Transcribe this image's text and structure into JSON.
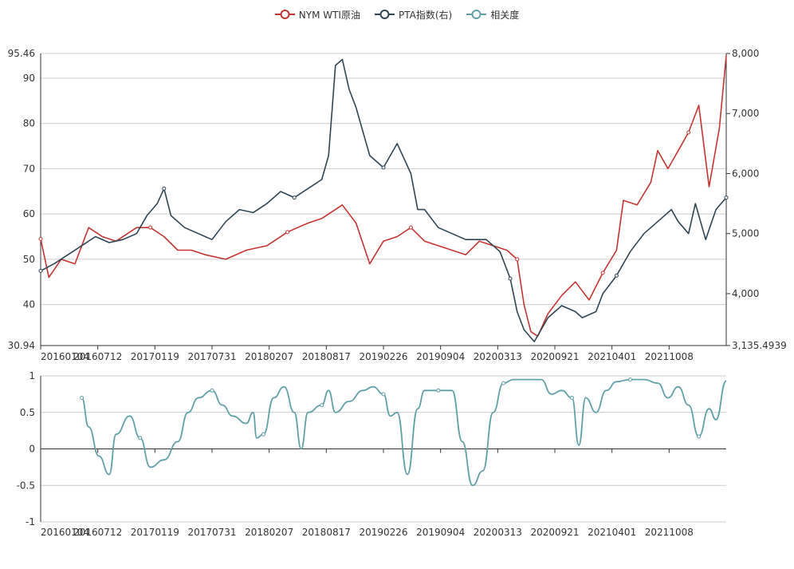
{
  "legend": [
    {
      "name": "NYM WTI原油",
      "color": "#c23531"
    },
    {
      "name": "PTA指数(右)",
      "color": "#2f4554"
    },
    {
      "name": "相关度",
      "color": "#61a0a8"
    }
  ],
  "chart_data": [
    {
      "type": "line",
      "title": "",
      "x_tick_labels": [
        "20160104",
        "20160712",
        "20170119",
        "20170731",
        "20180207",
        "20180817",
        "20190226",
        "20190904",
        "20200313",
        "20200921",
        "20210401",
        "20211008"
      ],
      "y_left": {
        "min": 30.94,
        "max": 95.46,
        "ticks": [
          "30.94",
          "40",
          "50",
          "60",
          "70",
          "80",
          "90",
          "95.46"
        ]
      },
      "y_right": {
        "min": 3135.4939,
        "max": 8000,
        "ticks": [
          "3,135.4939",
          "4,000",
          "5,000",
          "6,000",
          "7,000",
          "8,000"
        ]
      },
      "grid": true,
      "series": [
        {
          "name": "NYM WTI原油",
          "axis": "left",
          "color": "#c23531",
          "points": [
            [
              0,
              54.5
            ],
            [
              0.012,
              46
            ],
            [
              0.03,
              50
            ],
            [
              0.05,
              49
            ],
            [
              0.07,
              57
            ],
            [
              0.09,
              55
            ],
            [
              0.11,
              54
            ],
            [
              0.14,
              57
            ],
            [
              0.16,
              57
            ],
            [
              0.18,
              55
            ],
            [
              0.2,
              52
            ],
            [
              0.22,
              52
            ],
            [
              0.24,
              51
            ],
            [
              0.27,
              50
            ],
            [
              0.3,
              52
            ],
            [
              0.33,
              53
            ],
            [
              0.36,
              56
            ],
            [
              0.39,
              58
            ],
            [
              0.41,
              59
            ],
            [
              0.44,
              62
            ],
            [
              0.46,
              58
            ],
            [
              0.48,
              49
            ],
            [
              0.5,
              54
            ],
            [
              0.52,
              55
            ],
            [
              0.54,
              57
            ],
            [
              0.56,
              54
            ],
            [
              0.58,
              53
            ],
            [
              0.6,
              52
            ],
            [
              0.62,
              51
            ],
            [
              0.64,
              54
            ],
            [
              0.66,
              53
            ],
            [
              0.68,
              52
            ],
            [
              0.695,
              50
            ],
            [
              0.705,
              40
            ],
            [
              0.715,
              34
            ],
            [
              0.725,
              33
            ],
            [
              0.74,
              38
            ],
            [
              0.76,
              42
            ],
            [
              0.78,
              45
            ],
            [
              0.8,
              41
            ],
            [
              0.82,
              47
            ],
            [
              0.84,
              52
            ],
            [
              0.85,
              63
            ],
            [
              0.87,
              62
            ],
            [
              0.89,
              67
            ],
            [
              0.9,
              74
            ],
            [
              0.915,
              70
            ],
            [
              0.93,
              74
            ],
            [
              0.945,
              78
            ],
            [
              0.96,
              84
            ],
            [
              0.975,
              66
            ],
            [
              0.99,
              79
            ],
            [
              1.0,
              95
            ]
          ]
        },
        {
          "name": "PTA指数(右)",
          "axis": "right",
          "color": "#2f4554",
          "points": [
            [
              0,
              4380
            ],
            [
              0.02,
              4500
            ],
            [
              0.04,
              4650
            ],
            [
              0.06,
              4800
            ],
            [
              0.08,
              4950
            ],
            [
              0.1,
              4850
            ],
            [
              0.12,
              4900
            ],
            [
              0.14,
              5000
            ],
            [
              0.155,
              5300
            ],
            [
              0.17,
              5500
            ],
            [
              0.18,
              5750
            ],
            [
              0.19,
              5300
            ],
            [
              0.21,
              5100
            ],
            [
              0.23,
              5000
            ],
            [
              0.25,
              4900
            ],
            [
              0.27,
              5200
            ],
            [
              0.29,
              5400
            ],
            [
              0.31,
              5350
            ],
            [
              0.33,
              5500
            ],
            [
              0.35,
              5700
            ],
            [
              0.37,
              5600
            ],
            [
              0.39,
              5750
            ],
            [
              0.41,
              5900
            ],
            [
              0.42,
              6300
            ],
            [
              0.43,
              7800
            ],
            [
              0.44,
              7900
            ],
            [
              0.45,
              7400
            ],
            [
              0.46,
              7100
            ],
            [
              0.47,
              6700
            ],
            [
              0.48,
              6300
            ],
            [
              0.5,
              6100
            ],
            [
              0.52,
              6500
            ],
            [
              0.54,
              6000
            ],
            [
              0.55,
              5400
            ],
            [
              0.56,
              5400
            ],
            [
              0.58,
              5100
            ],
            [
              0.6,
              5000
            ],
            [
              0.62,
              4900
            ],
            [
              0.65,
              4900
            ],
            [
              0.67,
              4700
            ],
            [
              0.685,
              4250
            ],
            [
              0.695,
              3700
            ],
            [
              0.705,
              3400
            ],
            [
              0.72,
              3200
            ],
            [
              0.74,
              3600
            ],
            [
              0.76,
              3800
            ],
            [
              0.78,
              3700
            ],
            [
              0.79,
              3600
            ],
            [
              0.81,
              3700
            ],
            [
              0.82,
              4000
            ],
            [
              0.84,
              4300
            ],
            [
              0.86,
              4700
            ],
            [
              0.88,
              5000
            ],
            [
              0.9,
              5200
            ],
            [
              0.92,
              5400
            ],
            [
              0.93,
              5200
            ],
            [
              0.945,
              5000
            ],
            [
              0.955,
              5500
            ],
            [
              0.97,
              4900
            ],
            [
              0.985,
              5400
            ],
            [
              1.0,
              5600
            ]
          ]
        }
      ]
    },
    {
      "type": "line",
      "title": "",
      "x_tick_labels": [
        "20160104",
        "20160712",
        "20170119",
        "20170731",
        "20180207",
        "20180817",
        "20190226",
        "20190904",
        "20200313",
        "20200921",
        "20210401",
        "20211008"
      ],
      "y": {
        "min": -1,
        "max": 1,
        "ticks": [
          "-1",
          "-0.5",
          "0",
          "0.5",
          "1"
        ]
      },
      "grid": true,
      "series": [
        {
          "name": "相关度",
          "color": "#61a0a8",
          "points": [
            [
              0.06,
              0.7
            ],
            [
              0.07,
              0.3
            ],
            [
              0.085,
              -0.1
            ],
            [
              0.1,
              -0.35
            ],
            [
              0.11,
              0.2
            ],
            [
              0.13,
              0.45
            ],
            [
              0.145,
              0.15
            ],
            [
              0.16,
              -0.25
            ],
            [
              0.18,
              -0.15
            ],
            [
              0.2,
              0.1
            ],
            [
              0.215,
              0.5
            ],
            [
              0.23,
              0.7
            ],
            [
              0.25,
              0.8
            ],
            [
              0.265,
              0.6
            ],
            [
              0.28,
              0.45
            ],
            [
              0.3,
              0.35
            ],
            [
              0.31,
              0.5
            ],
            [
              0.315,
              0.15
            ],
            [
              0.325,
              0.2
            ],
            [
              0.34,
              0.7
            ],
            [
              0.355,
              0.85
            ],
            [
              0.37,
              0.5
            ],
            [
              0.38,
              0.0
            ],
            [
              0.39,
              0.5
            ],
            [
              0.41,
              0.6
            ],
            [
              0.42,
              0.8
            ],
            [
              0.43,
              0.5
            ],
            [
              0.45,
              0.65
            ],
            [
              0.47,
              0.8
            ],
            [
              0.485,
              0.85
            ],
            [
              0.5,
              0.75
            ],
            [
              0.51,
              0.45
            ],
            [
              0.52,
              0.5
            ],
            [
              0.535,
              -0.35
            ],
            [
              0.55,
              0.55
            ],
            [
              0.56,
              0.8
            ],
            [
              0.58,
              0.8
            ],
            [
              0.6,
              0.8
            ],
            [
              0.615,
              0.1
            ],
            [
              0.63,
              -0.5
            ],
            [
              0.645,
              -0.3
            ],
            [
              0.66,
              0.5
            ],
            [
              0.675,
              0.9
            ],
            [
              0.69,
              0.95
            ],
            [
              0.71,
              0.95
            ],
            [
              0.73,
              0.95
            ],
            [
              0.745,
              0.75
            ],
            [
              0.76,
              0.8
            ],
            [
              0.775,
              0.7
            ],
            [
              0.785,
              0.05
            ],
            [
              0.795,
              0.7
            ],
            [
              0.81,
              0.5
            ],
            [
              0.825,
              0.8
            ],
            [
              0.84,
              0.92
            ],
            [
              0.86,
              0.95
            ],
            [
              0.88,
              0.95
            ],
            [
              0.9,
              0.9
            ],
            [
              0.915,
              0.7
            ],
            [
              0.93,
              0.85
            ],
            [
              0.945,
              0.6
            ],
            [
              0.96,
              0.17
            ],
            [
              0.975,
              0.55
            ],
            [
              0.985,
              0.4
            ],
            [
              1.0,
              0.93
            ]
          ]
        }
      ]
    }
  ]
}
